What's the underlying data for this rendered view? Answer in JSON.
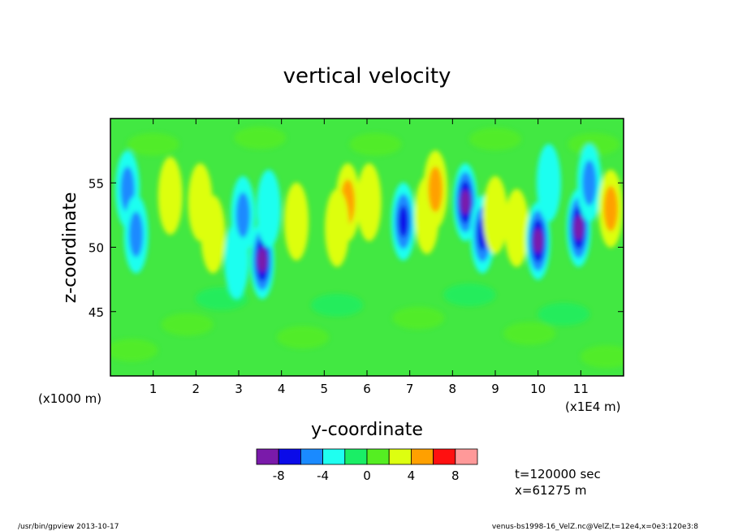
{
  "chart_data": {
    "type": "heatmap",
    "title": "vertical velocity",
    "xlabel": "y-coordinate",
    "ylabel": "z-coordinate",
    "x_units_left": "(x1000 m)",
    "x_units_right": "(x1E4 m)",
    "x_ticks": [
      "1",
      "2",
      "3",
      "4",
      "5",
      "6",
      "7",
      "8",
      "9",
      "10",
      "11"
    ],
    "x_tick_values": [
      1,
      2,
      3,
      4,
      5,
      6,
      7,
      8,
      9,
      10,
      11
    ],
    "xlim": [
      0,
      12
    ],
    "y_ticks": [
      "45",
      "50",
      "55"
    ],
    "y_tick_values": [
      45,
      50,
      55
    ],
    "ylim": [
      40,
      60
    ],
    "colorbar": {
      "colors": [
        "#7a1aaa",
        "#0b0be8",
        "#1a8aff",
        "#1ffff0",
        "#1aee66",
        "#55ee22",
        "#ddff10",
        "#ffa000",
        "#ff1010",
        "#ff9999"
      ],
      "tick_labels": [
        "-8",
        "-4",
        "0",
        "4",
        "8"
      ],
      "tick_values": [
        -8,
        -4,
        0,
        4,
        8
      ]
    },
    "features": [
      {
        "y": 0.4,
        "z": 54.5,
        "value": -5
      },
      {
        "y": 0.6,
        "z": 51.0,
        "value": -4
      },
      {
        "y": 1.4,
        "z": 54.0,
        "value": 3
      },
      {
        "y": 2.1,
        "z": 53.5,
        "value": 3
      },
      {
        "y": 2.4,
        "z": 51.0,
        "value": 2
      },
      {
        "y": 2.95,
        "z": 49.0,
        "value": -3
      },
      {
        "y": 3.1,
        "z": 52.5,
        "value": -4
      },
      {
        "y": 3.55,
        "z": 49.0,
        "value": -8
      },
      {
        "y": 3.7,
        "z": 53.0,
        "value": -3
      },
      {
        "y": 4.35,
        "z": 52.0,
        "value": 3
      },
      {
        "y": 5.55,
        "z": 53.5,
        "value": 5
      },
      {
        "y": 5.3,
        "z": 51.5,
        "value": 2
      },
      {
        "y": 6.05,
        "z": 53.5,
        "value": 3
      },
      {
        "y": 6.85,
        "z": 52.0,
        "value": -7
      },
      {
        "y": 7.4,
        "z": 52.5,
        "value": 3
      },
      {
        "y": 7.6,
        "z": 54.5,
        "value": 5
      },
      {
        "y": 8.3,
        "z": 53.5,
        "value": -8
      },
      {
        "y": 8.7,
        "z": 51.0,
        "value": -6
      },
      {
        "y": 9.0,
        "z": 52.5,
        "value": 3
      },
      {
        "y": 9.5,
        "z": 51.5,
        "value": 2
      },
      {
        "y": 10.0,
        "z": 50.5,
        "value": -8
      },
      {
        "y": 10.25,
        "z": 55.0,
        "value": -3
      },
      {
        "y": 10.95,
        "z": 51.5,
        "value": -9
      },
      {
        "y": 11.2,
        "z": 55.0,
        "value": -4
      },
      {
        "y": 11.7,
        "z": 53.0,
        "value": 4
      }
    ],
    "annotations": [
      "t=120000 sec",
      "x=61275 m"
    ]
  },
  "footer": {
    "left": "/usr/bin/gpview  2013-10-17",
    "right": "venus-bs1998-16_VelZ.nc@VelZ,t=12e4,x=0e3:120e3:8"
  }
}
